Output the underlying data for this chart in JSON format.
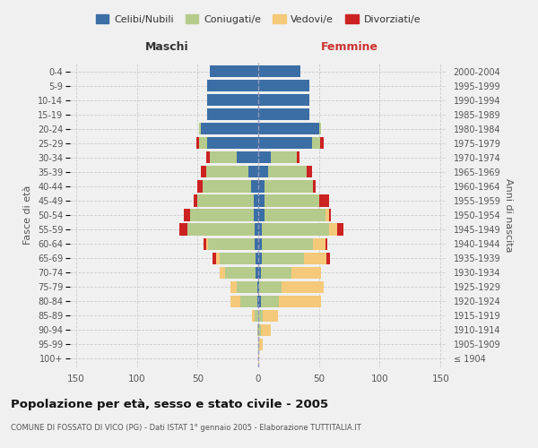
{
  "age_groups": [
    "100+",
    "95-99",
    "90-94",
    "85-89",
    "80-84",
    "75-79",
    "70-74",
    "65-69",
    "60-64",
    "55-59",
    "50-54",
    "45-49",
    "40-44",
    "35-39",
    "30-34",
    "25-29",
    "20-24",
    "15-19",
    "10-14",
    "5-9",
    "0-4"
  ],
  "birth_years": [
    "≤ 1904",
    "1905-1909",
    "1910-1914",
    "1915-1919",
    "1920-1924",
    "1925-1929",
    "1930-1934",
    "1935-1939",
    "1940-1944",
    "1945-1949",
    "1950-1954",
    "1955-1959",
    "1960-1964",
    "1965-1969",
    "1970-1974",
    "1975-1979",
    "1980-1984",
    "1985-1989",
    "1990-1994",
    "1995-1999",
    "2000-2004"
  ],
  "male_celibi": [
    0,
    0,
    0,
    0,
    1,
    1,
    2,
    2,
    3,
    3,
    4,
    4,
    6,
    8,
    18,
    42,
    47,
    42,
    42,
    42,
    40
  ],
  "male_coniugati": [
    0,
    0,
    1,
    3,
    14,
    17,
    25,
    30,
    38,
    55,
    52,
    46,
    40,
    35,
    22,
    7,
    2,
    0,
    0,
    0,
    0
  ],
  "male_vedovi": [
    0,
    0,
    0,
    2,
    8,
    5,
    5,
    3,
    2,
    0,
    0,
    0,
    0,
    0,
    0,
    0,
    0,
    0,
    0,
    0,
    0
  ],
  "male_divorziati": [
    0,
    0,
    0,
    0,
    0,
    0,
    0,
    3,
    2,
    7,
    5,
    3,
    4,
    4,
    3,
    2,
    0,
    0,
    0,
    0,
    0
  ],
  "female_celibi": [
    0,
    0,
    0,
    0,
    2,
    1,
    2,
    3,
    3,
    3,
    5,
    5,
    5,
    8,
    10,
    44,
    50,
    42,
    42,
    42,
    35
  ],
  "female_coniugati": [
    0,
    1,
    2,
    4,
    15,
    18,
    25,
    35,
    42,
    55,
    50,
    45,
    40,
    32,
    22,
    7,
    2,
    0,
    0,
    0,
    0
  ],
  "female_vedovi": [
    1,
    3,
    8,
    12,
    35,
    35,
    25,
    18,
    10,
    7,
    3,
    0,
    0,
    0,
    0,
    0,
    0,
    0,
    0,
    0,
    0
  ],
  "female_divorziati": [
    0,
    0,
    0,
    0,
    0,
    0,
    0,
    3,
    2,
    5,
    2,
    8,
    2,
    4,
    2,
    3,
    0,
    0,
    0,
    0,
    0
  ],
  "color_celibi": "#3b6ea5",
  "color_coniugati": "#b5cb8b",
  "color_vedovi": "#f5c97a",
  "color_divorziati": "#cc2222",
  "title_main": "Popolazione per età, sesso e stato civile - 2005",
  "title_sub": "COMUNE DI FOSSATO DI VICO (PG) - Dati ISTAT 1° gennaio 2005 - Elaborazione TUTTITALIA.IT",
  "legend_labels": [
    "Celibi/Nubili",
    "Coniugati/e",
    "Vedovi/e",
    "Divorziati/e"
  ],
  "xlim": 155,
  "background_color": "#f0f0f0",
  "grid_color": "#cccccc"
}
